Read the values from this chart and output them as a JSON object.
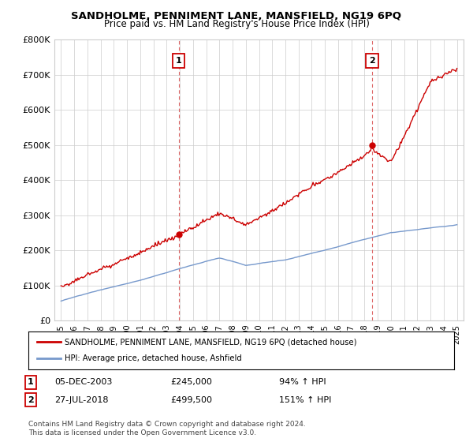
{
  "title": "SANDHOLME, PENNIMENT LANE, MANSFIELD, NG19 6PQ",
  "subtitle": "Price paid vs. HM Land Registry's House Price Index (HPI)",
  "ylim": [
    0,
    800000
  ],
  "yticks": [
    0,
    100000,
    200000,
    300000,
    400000,
    500000,
    600000,
    700000,
    800000
  ],
  "ytick_labels": [
    "£0",
    "£100K",
    "£200K",
    "£300K",
    "£400K",
    "£500K",
    "£600K",
    "£700K",
    "£800K"
  ],
  "sale1_x": 2003.92,
  "sale1_y": 245000,
  "sale2_x": 2018.57,
  "sale2_y": 499500,
  "hpi_line_color": "#7799cc",
  "price_line_color": "#cc0000",
  "vline_color": "#dd6666",
  "background_color": "#ffffff",
  "grid_color": "#cccccc",
  "legend_label_red": "SANDHOLME, PENNIMENT LANE, MANSFIELD, NG19 6PQ (detached house)",
  "legend_label_blue": "HPI: Average price, detached house, Ashfield",
  "sale1_date_text": "05-DEC-2003",
  "sale1_price_text": "£245,000",
  "sale1_hpi_text": "94% ↑ HPI",
  "sale2_date_text": "27-JUL-2018",
  "sale2_price_text": "£499,500",
  "sale2_hpi_text": "151% ↑ HPI",
  "footer": "Contains HM Land Registry data © Crown copyright and database right 2024.\nThis data is licensed under the Open Government Licence v3.0.",
  "xlim_start": 1994.5,
  "xlim_end": 2025.5
}
